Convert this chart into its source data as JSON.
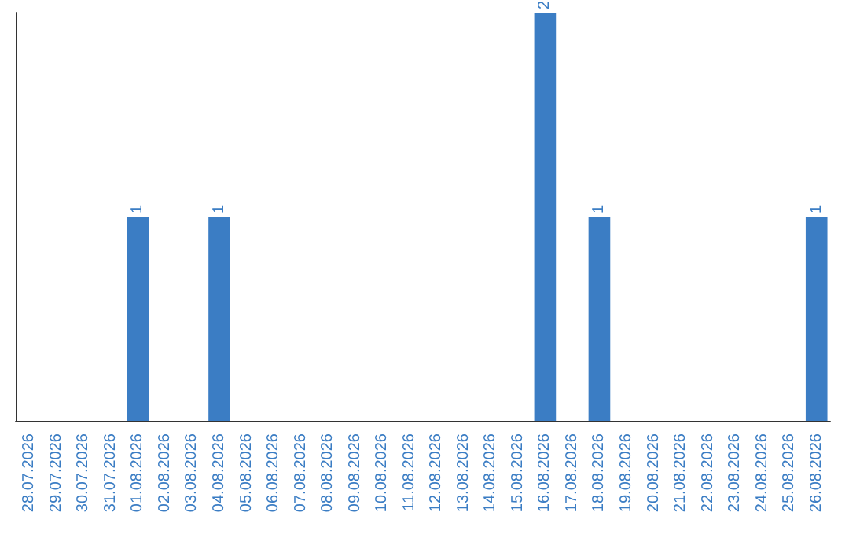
{
  "chart_data": {
    "type": "bar",
    "categories": [
      "28.07.2026",
      "29.07.2026",
      "30.07.2026",
      "31.07.2026",
      "01.08.2026",
      "02.08.2026",
      "03.08.2026",
      "04.08.2026",
      "05.08.2026",
      "06.08.2026",
      "07.08.2026",
      "08.08.2026",
      "09.08.2026",
      "10.08.2026",
      "11.08.2026",
      "12.08.2026",
      "13.08.2026",
      "14.08.2026",
      "15.08.2026",
      "16.08.2026",
      "17.08.2026",
      "18.08.2026",
      "19.08.2026",
      "20.08.2026",
      "21.08.2026",
      "22.08.2026",
      "23.08.2026",
      "24.08.2026",
      "25.08.2026",
      "26.08.2026"
    ],
    "values": [
      0,
      0,
      0,
      0,
      1,
      0,
      0,
      1,
      0,
      0,
      0,
      0,
      0,
      0,
      0,
      0,
      0,
      0,
      0,
      2,
      0,
      1,
      0,
      0,
      0,
      0,
      0,
      0,
      0,
      1
    ],
    "color": "#3b7dc4",
    "value_labels": [
      null,
      null,
      null,
      null,
      "1",
      null,
      null,
      "1",
      null,
      null,
      null,
      null,
      null,
      null,
      null,
      null,
      null,
      null,
      null,
      "2",
      null,
      "1",
      null,
      null,
      null,
      null,
      null,
      null,
      null,
      "1"
    ],
    "tick_labels": "x",
    "grid": false
  }
}
